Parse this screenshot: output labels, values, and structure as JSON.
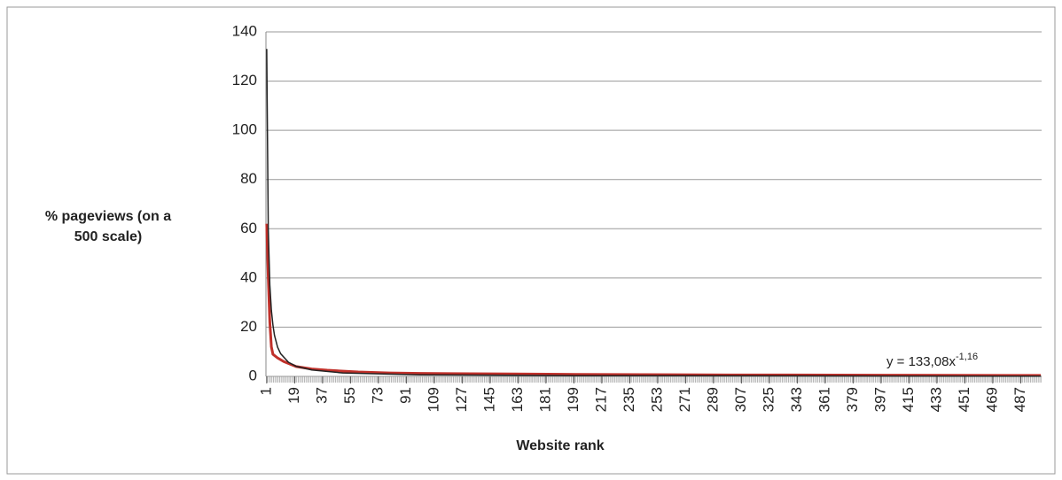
{
  "chart_data": {
    "type": "line",
    "ylabel": [
      "% pageviews (on a",
      "500 scale)"
    ],
    "xlabel": "Website rank",
    "annotation": {
      "base": "y = 133,08x",
      "exponent": "-1,16"
    },
    "xlim": [
      0.5,
      500.5
    ],
    "xticks": [
      1,
      19,
      37,
      55,
      73,
      91,
      109,
      127,
      145,
      163,
      181,
      199,
      217,
      235,
      253,
      271,
      289,
      307,
      325,
      343,
      361,
      379,
      397,
      415,
      433,
      451,
      469,
      487
    ],
    "ylim": [
      0,
      140
    ],
    "yticks": [
      0,
      20,
      40,
      60,
      80,
      100,
      120,
      140
    ],
    "grid": true,
    "series": [
      {
        "color": "#c0302a",
        "x": [
          1,
          2,
          3,
          4,
          5,
          8,
          12,
          20,
          30,
          40,
          60,
          80,
          100,
          160,
          200,
          300,
          400,
          500
        ],
        "values": [
          62,
          40,
          22,
          12,
          9,
          7.5,
          6,
          4,
          3,
          2.5,
          1.8,
          1.4,
          1.2,
          1,
          0.8,
          0.6,
          0.5,
          0.4
        ]
      },
      {
        "color": "#222222",
        "x": [
          1,
          2,
          3,
          4,
          5,
          6,
          8,
          10,
          15,
          20,
          30,
          50,
          100,
          200,
          500
        ],
        "values": [
          133.08,
          59.8,
          37.2,
          26.9,
          20.9,
          16.7,
          11.9,
          9.2,
          5.75,
          4.1,
          2.6,
          1.4,
          0.64,
          0.29,
          0.1
        ]
      }
    ]
  }
}
